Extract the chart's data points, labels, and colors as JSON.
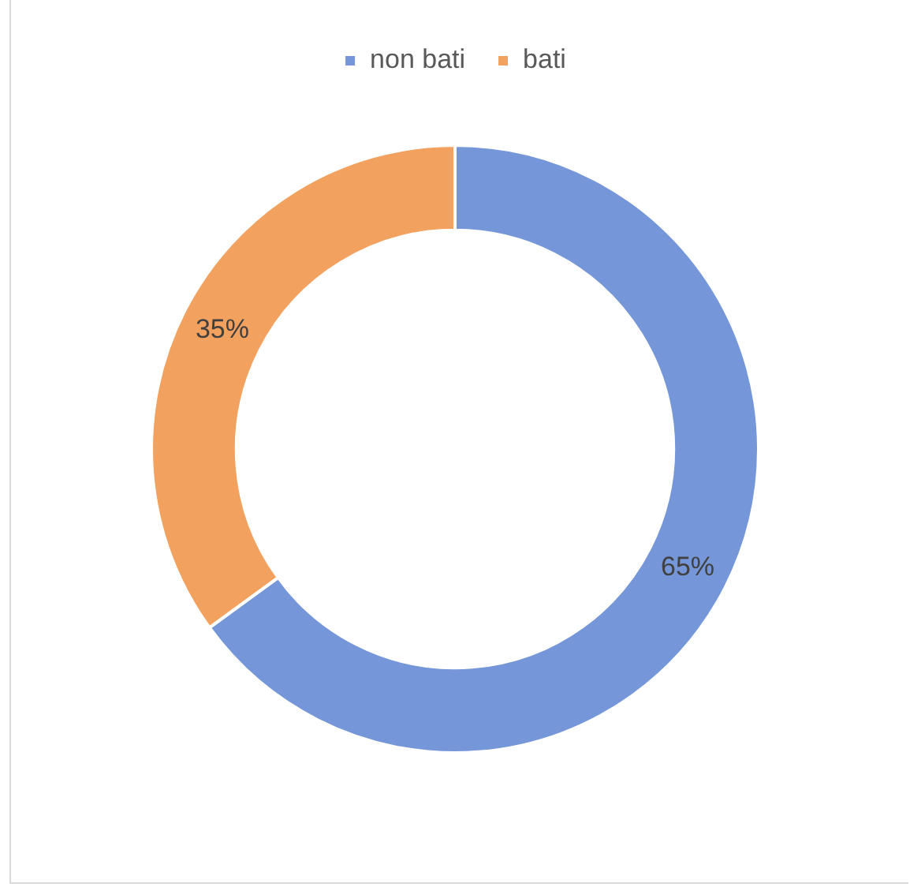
{
  "chart_data": {
    "type": "donut",
    "categories": [
      "non bati",
      "bati"
    ],
    "values": [
      65,
      35
    ],
    "colors": [
      "#7596d8",
      "#f2a15f"
    ],
    "value_labels": [
      "65%",
      "35%"
    ],
    "legend": "top"
  }
}
